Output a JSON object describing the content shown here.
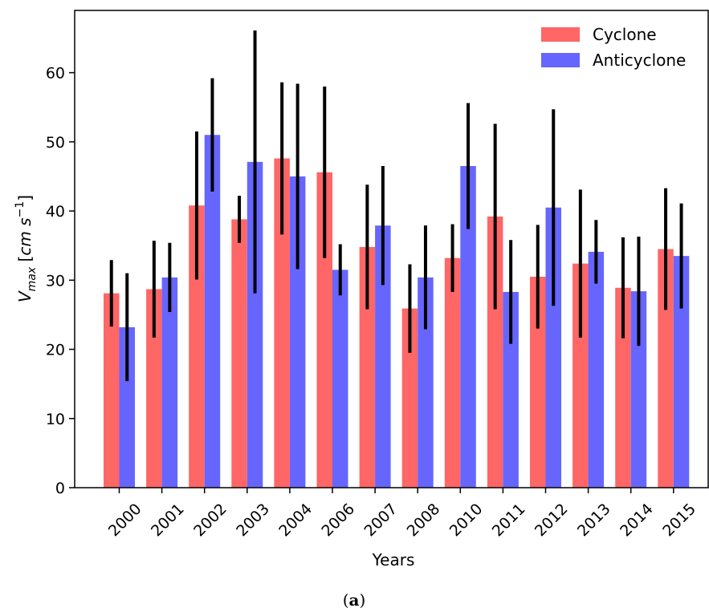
{
  "chart_data": {
    "type": "bar",
    "xlabel": "Years",
    "ylabel": {
      "base": "V",
      "sub": "max",
      "unit_open": " [",
      "unit_main": "cm s",
      "unit_sup": "−1",
      "unit_close": "]"
    },
    "categories": [
      "2000",
      "2001",
      "2002",
      "2003",
      "2004",
      "2006",
      "2007",
      "2008",
      "2010",
      "2011",
      "2012",
      "2013",
      "2014",
      "2015"
    ],
    "ylim": [
      0,
      69
    ],
    "yticks": [
      "0",
      "10",
      "20",
      "30",
      "40",
      "50",
      "60"
    ],
    "grid": false,
    "legend_position": "top-right",
    "error_bars": true,
    "series": [
      {
        "name": "Cyclone",
        "color": "#ff6666",
        "values": [
          28.1,
          28.7,
          40.8,
          38.8,
          47.6,
          45.6,
          34.8,
          25.9,
          33.2,
          39.2,
          30.5,
          32.4,
          28.9,
          34.5
        ],
        "errors": [
          4.8,
          7.0,
          10.7,
          3.4,
          11.0,
          12.4,
          9.0,
          6.4,
          4.9,
          13.4,
          7.5,
          10.7,
          7.3,
          8.8
        ]
      },
      {
        "name": "Anticyclone",
        "color": "#6666ff",
        "values": [
          23.2,
          30.4,
          51.0,
          47.1,
          45.0,
          31.5,
          37.9,
          30.4,
          46.5,
          28.3,
          40.5,
          34.1,
          28.4,
          33.5
        ],
        "errors": [
          7.8,
          5.0,
          8.2,
          19.0,
          13.4,
          3.7,
          8.6,
          7.5,
          9.1,
          7.5,
          14.2,
          4.6,
          7.9,
          7.6
        ]
      }
    ]
  },
  "caption": {
    "open": "(",
    "label": "a",
    "close": ")"
  }
}
